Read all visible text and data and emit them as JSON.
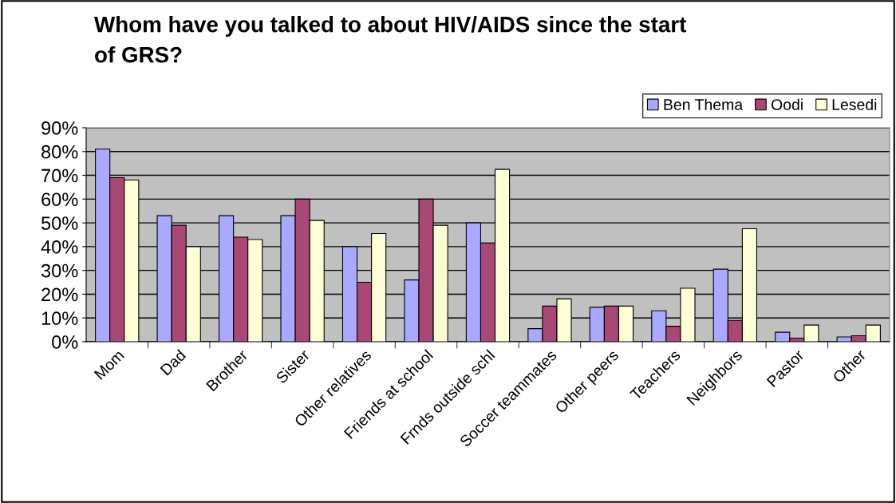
{
  "chart_data": {
    "type": "bar",
    "title": "Whom have you talked to about HIV/AIDS since the start\nof GRS?",
    "categories": [
      "Mom",
      "Dad",
      "Brother",
      "Sister",
      "Other relatives",
      "Friends at school",
      "Frnds outside schl",
      "Soccer teammates",
      "Other peers",
      "Teachers",
      "Neighbors",
      "Pastor",
      "Other"
    ],
    "series": [
      {
        "name": "Ben Thema",
        "color": "#a9aaff",
        "values": [
          81,
          53,
          53,
          53,
          40,
          26,
          50,
          5.5,
          14.5,
          13,
          30.5,
          4,
          2
        ]
      },
      {
        "name": "Oodi",
        "color": "#a94775",
        "values": [
          69,
          49,
          44,
          60,
          25,
          60,
          41.5,
          15,
          15,
          6.5,
          9,
          1.5,
          2.5
        ]
      },
      {
        "name": "Lesedi",
        "color": "#ffffd6",
        "values": [
          68,
          40,
          43,
          51,
          45.5,
          49,
          72.5,
          18,
          15,
          22.5,
          47.5,
          7,
          7
        ]
      }
    ],
    "ylim": [
      0,
      90
    ],
    "yticks": [
      {
        "value": 0,
        "label": "0%"
      },
      {
        "value": 10,
        "label": "10%"
      },
      {
        "value": 20,
        "label": "20%"
      },
      {
        "value": 30,
        "label": "30%"
      },
      {
        "value": 40,
        "label": "40%"
      },
      {
        "value": 50,
        "label": "50%"
      },
      {
        "value": 60,
        "label": "60%"
      },
      {
        "value": 70,
        "label": "70%"
      },
      {
        "value": 80,
        "label": "80%"
      },
      {
        "value": 90,
        "label": "90%"
      }
    ],
    "grid": "y",
    "legend": "top right"
  }
}
